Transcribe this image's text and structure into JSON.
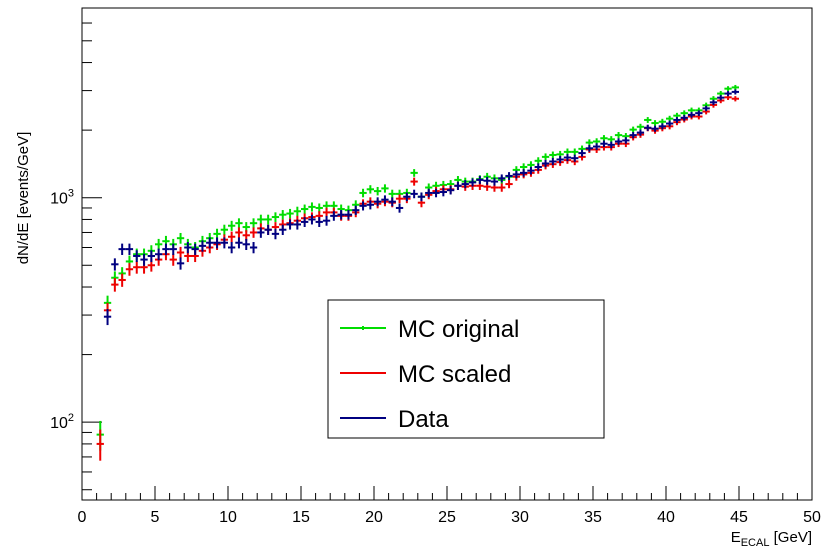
{
  "chart_data": {
    "type": "scatter",
    "title": "",
    "xlabel_main": "E",
    "xlabel_sub": "ECAL",
    "xlabel_unit": " [GeV]",
    "ylabel": "dN/dE [events/GeV]",
    "xlim": [
      0,
      50
    ],
    "ylim": [
      45,
      7000
    ],
    "y_scale": "log",
    "x_ticks": [
      "0",
      "5",
      "10",
      "15",
      "20",
      "25",
      "30",
      "35",
      "40",
      "45",
      "50"
    ],
    "y_tick_labels": [
      {
        "base": "10",
        "exp": "2",
        "value": 100
      },
      {
        "base": "10",
        "exp": "3",
        "value": 1000
      }
    ],
    "legend_position": "center-right",
    "x": [
      1.25,
      1.75,
      2.25,
      2.75,
      3.25,
      3.75,
      4.25,
      4.75,
      5.25,
      5.75,
      6.25,
      6.75,
      7.25,
      7.75,
      8.25,
      8.75,
      9.25,
      9.75,
      10.25,
      10.75,
      11.25,
      11.75,
      12.25,
      12.75,
      13.25,
      13.75,
      14.25,
      14.75,
      15.25,
      15.75,
      16.25,
      16.75,
      17.25,
      17.75,
      18.25,
      18.75,
      19.25,
      19.75,
      20.25,
      20.75,
      21.25,
      21.75,
      22.25,
      22.75,
      23.25,
      23.75,
      24.25,
      24.75,
      25.25,
      25.75,
      26.25,
      26.75,
      27.25,
      27.75,
      28.25,
      28.75,
      29.25,
      29.75,
      30.25,
      30.75,
      31.25,
      31.75,
      32.25,
      32.75,
      33.25,
      33.75,
      34.25,
      34.75,
      35.25,
      35.75,
      36.25,
      36.75,
      37.25,
      37.75,
      38.25,
      38.75,
      39.25,
      39.75,
      40.25,
      40.75,
      41.25,
      41.75,
      42.25,
      42.75,
      43.25,
      43.75,
      44.25,
      44.75
    ],
    "series": [
      {
        "name": "MC original",
        "color": "#00dd00",
        "values": [
          88,
          340,
          440,
          460,
          520,
          560,
          560,
          580,
          620,
          640,
          620,
          660,
          620,
          600,
          640,
          660,
          690,
          720,
          750,
          770,
          740,
          770,
          800,
          800,
          820,
          840,
          850,
          870,
          890,
          910,
          900,
          920,
          920,
          890,
          880,
          930,
          1050,
          1090,
          1070,
          1100,
          1040,
          1040,
          1050,
          1290,
          1010,
          1110,
          1130,
          1140,
          1150,
          1200,
          1180,
          1180,
          1210,
          1240,
          1220,
          1200,
          1240,
          1330,
          1370,
          1400,
          1460,
          1520,
          1550,
          1560,
          1600,
          1600,
          1650,
          1760,
          1780,
          1840,
          1820,
          1900,
          1880,
          2010,
          2070,
          2220,
          2150,
          2180,
          2250,
          2320,
          2380,
          2450,
          2450,
          2580,
          2760,
          2910,
          3060,
          3100
        ]
      },
      {
        "name": "MC scaled",
        "color": "#ee0000",
        "values": [
          80,
          315,
          410,
          430,
          480,
          490,
          490,
          500,
          530,
          560,
          530,
          570,
          550,
          550,
          580,
          600,
          620,
          650,
          670,
          700,
          680,
          700,
          730,
          720,
          740,
          760,
          770,
          790,
          810,
          820,
          830,
          860,
          860,
          830,
          830,
          860,
          940,
          960,
          940,
          960,
          950,
          990,
          990,
          1180,
          950,
          1030,
          1070,
          1090,
          1090,
          1130,
          1120,
          1130,
          1130,
          1120,
          1110,
          1110,
          1150,
          1240,
          1270,
          1290,
          1330,
          1390,
          1410,
          1440,
          1470,
          1450,
          1520,
          1640,
          1640,
          1680,
          1680,
          1740,
          1740,
          1860,
          1910,
          2040,
          1990,
          2040,
          2080,
          2170,
          2230,
          2300,
          2300,
          2420,
          2590,
          2710,
          2800,
          2760
        ]
      },
      {
        "name": "Data",
        "color": "#000080",
        "values": [
          null,
          295,
          505,
          590,
          590,
          550,
          530,
          550,
          560,
          590,
          590,
          510,
          600,
          590,
          610,
          630,
          630,
          630,
          600,
          630,
          620,
          600,
          700,
          720,
          690,
          720,
          760,
          760,
          780,
          800,
          780,
          790,
          830,
          840,
          840,
          880,
          920,
          930,
          960,
          980,
          960,
          900,
          1010,
          1040,
          1010,
          1050,
          1050,
          1060,
          1080,
          1130,
          1150,
          1170,
          1200,
          1190,
          1180,
          1220,
          1250,
          1270,
          1290,
          1320,
          1370,
          1420,
          1450,
          1480,
          1510,
          1500,
          1580,
          1660,
          1690,
          1740,
          1720,
          1780,
          1800,
          1900,
          1950,
          2050,
          2030,
          2080,
          2140,
          2220,
          2270,
          2340,
          2380,
          2500,
          2660,
          2790,
          2910,
          2960
        ]
      }
    ]
  }
}
